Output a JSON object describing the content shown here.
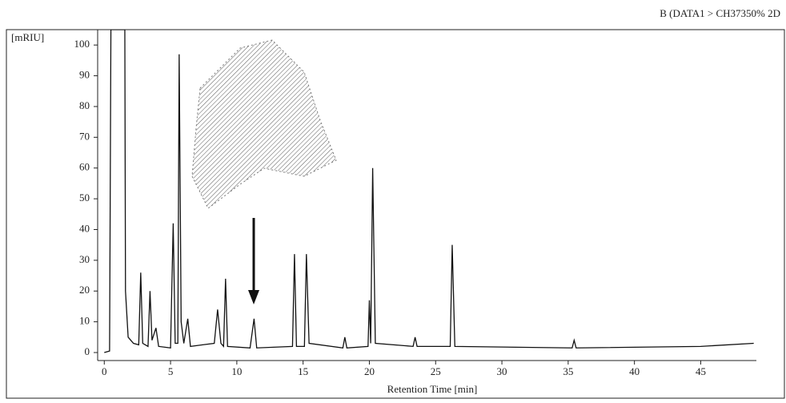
{
  "chart_data": {
    "type": "line",
    "header": "B  (DATA1 > CH37350% 2D",
    "xlabel": "Retention Time [min]",
    "ylabel": "[mRIU]",
    "xlim": [
      -0.5,
      49.2
    ],
    "ylim": [
      -2.6,
      105
    ],
    "xticks": [
      0,
      5,
      10,
      15,
      20,
      25,
      30,
      35,
      40,
      45
    ],
    "yticks": [
      0,
      10,
      20,
      30,
      40,
      50,
      60,
      70,
      80,
      90,
      100
    ],
    "color": "#111111",
    "x": [
      0,
      0.4,
      0.5,
      1.4,
      1.55,
      1.6,
      1.8,
      2.2,
      2.6,
      2.75,
      2.9,
      3.3,
      3.45,
      3.6,
      3.9,
      4.1,
      5.0,
      5.2,
      5.35,
      5.55,
      5.65,
      5.8,
      6.0,
      6.3,
      6.5,
      8.3,
      8.55,
      8.8,
      9.0,
      9.15,
      9.3,
      11.0,
      11.3,
      11.5,
      14.2,
      14.35,
      14.5,
      15.1,
      15.25,
      15.45,
      18.0,
      18.15,
      18.3,
      19.9,
      20.0,
      20.1,
      20.25,
      20.45,
      23.3,
      23.45,
      23.6,
      26.1,
      26.25,
      26.45,
      35.3,
      35.45,
      35.6,
      45,
      49
    ],
    "values": [
      0,
      0.5,
      105,
      105,
      105,
      20,
      5,
      3,
      2.5,
      26,
      3,
      2,
      20,
      4,
      8,
      2,
      1.5,
      42,
      3,
      3,
      97,
      10,
      3,
      11,
      2,
      3,
      14,
      3,
      2,
      24,
      2,
      1.5,
      11,
      1.5,
      2,
      32,
      2,
      2,
      32,
      3,
      1.5,
      5,
      1.5,
      2,
      17,
      3,
      60,
      3,
      2,
      5,
      2,
      2,
      35,
      2,
      1.5,
      4,
      1.5,
      2,
      3
    ]
  }
}
